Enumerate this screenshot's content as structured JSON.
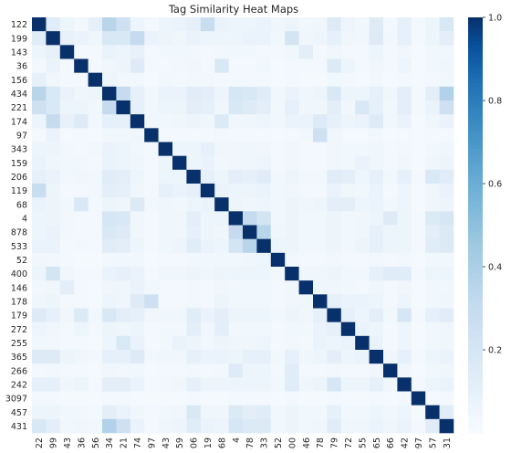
{
  "chart_data": {
    "type": "heatmap",
    "title": "Tag Similarity Heat Maps",
    "xlabel": "",
    "ylabel": "",
    "labels": [
      "122",
      "199",
      "143",
      "36",
      "156",
      "434",
      "221",
      "174",
      "97",
      "343",
      "159",
      "206",
      "119",
      "68",
      "4",
      "878",
      "533",
      "52",
      "400",
      "146",
      "178",
      "179",
      "272",
      "255",
      "365",
      "266",
      "242",
      "3097",
      "457",
      "431"
    ],
    "colorbar": {
      "min": 0,
      "max": 1,
      "ticks": [
        0.2,
        0.4,
        0.6,
        0.8,
        1.0
      ],
      "tick_labels": [
        "0.2",
        "0.4",
        "0.6",
        "0.8",
        "1.0"
      ]
    },
    "colors": {
      "low": "#f7fbff",
      "mid": "#6baed6",
      "high": "#08306b"
    },
    "grid": false,
    "legend": "colorbar-right",
    "matrix": [
      [
        1.0,
        0.14,
        0.06,
        0.03,
        0.1,
        0.35,
        0.25,
        0.06,
        0.03,
        0.06,
        0.08,
        0.1,
        0.28,
        0.08,
        0.06,
        0.06,
        0.08,
        0.05,
        0.06,
        0.04,
        0.05,
        0.15,
        0.06,
        0.04,
        0.15,
        0.03,
        0.1,
        0.03,
        0.06,
        0.18
      ],
      [
        0.14,
        1.0,
        0.09,
        0.08,
        0.05,
        0.18,
        0.18,
        0.3,
        0.08,
        0.06,
        0.05,
        0.08,
        0.06,
        0.06,
        0.06,
        0.08,
        0.08,
        0.04,
        0.22,
        0.05,
        0.06,
        0.1,
        0.05,
        0.04,
        0.15,
        0.04,
        0.1,
        0.03,
        0.06,
        0.12
      ],
      [
        0.06,
        0.09,
        1.0,
        0.03,
        0.03,
        0.08,
        0.06,
        0.09,
        0.03,
        0.04,
        0.04,
        0.04,
        0.03,
        0.04,
        0.04,
        0.04,
        0.03,
        0.03,
        0.05,
        0.12,
        0.03,
        0.05,
        0.03,
        0.03,
        0.06,
        0.03,
        0.05,
        0.02,
        0.04,
        0.04
      ],
      [
        0.03,
        0.08,
        0.03,
        1.0,
        0.03,
        0.05,
        0.06,
        0.15,
        0.03,
        0.03,
        0.04,
        0.05,
        0.03,
        0.18,
        0.03,
        0.03,
        0.04,
        0.02,
        0.03,
        0.03,
        0.03,
        0.16,
        0.06,
        0.03,
        0.05,
        0.03,
        0.06,
        0.02,
        0.04,
        0.05
      ],
      [
        0.1,
        0.05,
        0.03,
        0.03,
        1.0,
        0.06,
        0.04,
        0.04,
        0.02,
        0.04,
        0.03,
        0.04,
        0.04,
        0.03,
        0.03,
        0.03,
        0.03,
        0.02,
        0.03,
        0.02,
        0.02,
        0.04,
        0.03,
        0.02,
        0.04,
        0.02,
        0.03,
        0.02,
        0.03,
        0.04
      ],
      [
        0.35,
        0.18,
        0.08,
        0.05,
        0.06,
        1.0,
        0.3,
        0.1,
        0.04,
        0.08,
        0.08,
        0.14,
        0.12,
        0.06,
        0.2,
        0.18,
        0.14,
        0.04,
        0.08,
        0.05,
        0.06,
        0.18,
        0.06,
        0.06,
        0.1,
        0.05,
        0.12,
        0.03,
        0.12,
        0.38
      ],
      [
        0.25,
        0.18,
        0.06,
        0.06,
        0.04,
        0.3,
        1.0,
        0.1,
        0.04,
        0.06,
        0.06,
        0.12,
        0.1,
        0.05,
        0.18,
        0.15,
        0.12,
        0.04,
        0.1,
        0.05,
        0.05,
        0.12,
        0.05,
        0.18,
        0.1,
        0.04,
        0.12,
        0.03,
        0.08,
        0.25
      ],
      [
        0.06,
        0.3,
        0.09,
        0.15,
        0.04,
        0.1,
        0.1,
        1.0,
        0.05,
        0.04,
        0.05,
        0.06,
        0.05,
        0.16,
        0.05,
        0.05,
        0.06,
        0.04,
        0.08,
        0.08,
        0.15,
        0.1,
        0.06,
        0.08,
        0.15,
        0.04,
        0.08,
        0.02,
        0.05,
        0.08
      ],
      [
        0.03,
        0.08,
        0.03,
        0.03,
        0.02,
        0.04,
        0.04,
        0.05,
        1.0,
        0.03,
        0.03,
        0.03,
        0.03,
        0.04,
        0.03,
        0.03,
        0.03,
        0.02,
        0.03,
        0.04,
        0.25,
        0.05,
        0.03,
        0.03,
        0.04,
        0.02,
        0.03,
        0.02,
        0.03,
        0.03
      ],
      [
        0.06,
        0.06,
        0.04,
        0.03,
        0.04,
        0.08,
        0.06,
        0.04,
        0.03,
        1.0,
        0.06,
        0.06,
        0.1,
        0.05,
        0.05,
        0.05,
        0.05,
        0.03,
        0.05,
        0.03,
        0.03,
        0.05,
        0.04,
        0.04,
        0.05,
        0.03,
        0.04,
        0.02,
        0.04,
        0.05
      ],
      [
        0.08,
        0.05,
        0.04,
        0.04,
        0.03,
        0.08,
        0.06,
        0.05,
        0.03,
        0.06,
        1.0,
        0.06,
        0.08,
        0.04,
        0.05,
        0.05,
        0.06,
        0.03,
        0.05,
        0.03,
        0.03,
        0.05,
        0.04,
        0.08,
        0.05,
        0.03,
        0.05,
        0.02,
        0.05,
        0.06
      ],
      [
        0.1,
        0.08,
        0.04,
        0.05,
        0.04,
        0.14,
        0.12,
        0.06,
        0.03,
        0.06,
        0.06,
        1.0,
        0.1,
        0.06,
        0.12,
        0.1,
        0.14,
        0.04,
        0.06,
        0.04,
        0.04,
        0.14,
        0.12,
        0.06,
        0.1,
        0.04,
        0.1,
        0.03,
        0.18,
        0.14
      ],
      [
        0.28,
        0.06,
        0.03,
        0.03,
        0.04,
        0.12,
        0.1,
        0.05,
        0.03,
        0.1,
        0.08,
        0.1,
        1.0,
        0.08,
        0.06,
        0.06,
        0.08,
        0.04,
        0.05,
        0.03,
        0.03,
        0.08,
        0.05,
        0.04,
        0.08,
        0.03,
        0.06,
        0.02,
        0.05,
        0.08
      ],
      [
        0.08,
        0.06,
        0.04,
        0.18,
        0.03,
        0.06,
        0.05,
        0.16,
        0.04,
        0.05,
        0.04,
        0.06,
        0.08,
        1.0,
        0.06,
        0.05,
        0.06,
        0.04,
        0.06,
        0.05,
        0.06,
        0.12,
        0.12,
        0.06,
        0.08,
        0.04,
        0.06,
        0.02,
        0.05,
        0.06
      ],
      [
        0.06,
        0.06,
        0.04,
        0.03,
        0.03,
        0.2,
        0.18,
        0.05,
        0.03,
        0.05,
        0.05,
        0.12,
        0.06,
        0.06,
        1.0,
        0.3,
        0.22,
        0.04,
        0.06,
        0.04,
        0.04,
        0.06,
        0.04,
        0.05,
        0.06,
        0.15,
        0.06,
        0.03,
        0.16,
        0.2
      ],
      [
        0.06,
        0.08,
        0.04,
        0.03,
        0.03,
        0.18,
        0.15,
        0.05,
        0.03,
        0.05,
        0.05,
        0.1,
        0.06,
        0.05,
        0.3,
        1.0,
        0.35,
        0.05,
        0.06,
        0.04,
        0.04,
        0.06,
        0.04,
        0.05,
        0.1,
        0.06,
        0.06,
        0.03,
        0.12,
        0.16
      ],
      [
        0.08,
        0.08,
        0.03,
        0.04,
        0.03,
        0.14,
        0.12,
        0.06,
        0.03,
        0.05,
        0.06,
        0.14,
        0.08,
        0.06,
        0.22,
        0.35,
        1.0,
        0.06,
        0.06,
        0.04,
        0.04,
        0.06,
        0.04,
        0.06,
        0.1,
        0.06,
        0.06,
        0.03,
        0.14,
        0.16
      ],
      [
        0.05,
        0.04,
        0.03,
        0.02,
        0.02,
        0.04,
        0.04,
        0.04,
        0.02,
        0.03,
        0.03,
        0.04,
        0.04,
        0.04,
        0.04,
        0.05,
        0.06,
        1.0,
        0.04,
        0.03,
        0.03,
        0.04,
        0.03,
        0.03,
        0.04,
        0.03,
        0.04,
        0.02,
        0.04,
        0.04
      ],
      [
        0.06,
        0.22,
        0.05,
        0.03,
        0.03,
        0.08,
        0.1,
        0.08,
        0.03,
        0.05,
        0.05,
        0.06,
        0.05,
        0.06,
        0.06,
        0.06,
        0.06,
        0.04,
        1.0,
        0.05,
        0.05,
        0.06,
        0.04,
        0.04,
        0.1,
        0.14,
        0.14,
        0.03,
        0.06,
        0.06
      ],
      [
        0.04,
        0.05,
        0.12,
        0.03,
        0.02,
        0.05,
        0.05,
        0.08,
        0.04,
        0.03,
        0.03,
        0.04,
        0.03,
        0.05,
        0.04,
        0.04,
        0.04,
        0.03,
        0.05,
        1.0,
        0.05,
        0.05,
        0.04,
        0.03,
        0.05,
        0.03,
        0.05,
        0.02,
        0.04,
        0.04
      ],
      [
        0.05,
        0.06,
        0.03,
        0.03,
        0.02,
        0.06,
        0.05,
        0.15,
        0.25,
        0.03,
        0.03,
        0.04,
        0.03,
        0.06,
        0.04,
        0.04,
        0.04,
        0.03,
        0.05,
        0.05,
        1.0,
        0.1,
        0.08,
        0.08,
        0.06,
        0.03,
        0.06,
        0.02,
        0.04,
        0.05
      ],
      [
        0.15,
        0.1,
        0.05,
        0.16,
        0.04,
        0.18,
        0.12,
        0.1,
        0.05,
        0.05,
        0.05,
        0.14,
        0.08,
        0.12,
        0.06,
        0.06,
        0.06,
        0.04,
        0.06,
        0.05,
        0.1,
        1.0,
        0.1,
        0.06,
        0.12,
        0.04,
        0.2,
        0.03,
        0.1,
        0.14
      ],
      [
        0.06,
        0.05,
        0.03,
        0.06,
        0.03,
        0.06,
        0.05,
        0.06,
        0.03,
        0.04,
        0.04,
        0.12,
        0.05,
        0.12,
        0.04,
        0.04,
        0.04,
        0.03,
        0.04,
        0.04,
        0.08,
        0.1,
        1.0,
        0.08,
        0.06,
        0.03,
        0.06,
        0.02,
        0.04,
        0.05
      ],
      [
        0.04,
        0.04,
        0.03,
        0.03,
        0.02,
        0.06,
        0.18,
        0.08,
        0.03,
        0.04,
        0.08,
        0.06,
        0.04,
        0.06,
        0.05,
        0.05,
        0.06,
        0.03,
        0.04,
        0.03,
        0.08,
        0.06,
        0.08,
        1.0,
        0.08,
        0.03,
        0.06,
        0.02,
        0.04,
        0.05
      ],
      [
        0.15,
        0.15,
        0.06,
        0.05,
        0.04,
        0.1,
        0.1,
        0.15,
        0.04,
        0.05,
        0.05,
        0.1,
        0.08,
        0.08,
        0.06,
        0.1,
        0.1,
        0.04,
        0.1,
        0.05,
        0.06,
        0.12,
        0.06,
        0.08,
        1.0,
        0.05,
        0.1,
        0.03,
        0.06,
        0.08
      ],
      [
        0.03,
        0.04,
        0.03,
        0.03,
        0.02,
        0.05,
        0.04,
        0.04,
        0.02,
        0.03,
        0.03,
        0.04,
        0.03,
        0.04,
        0.15,
        0.06,
        0.06,
        0.03,
        0.14,
        0.03,
        0.03,
        0.04,
        0.03,
        0.03,
        0.05,
        1.0,
        0.05,
        0.02,
        0.04,
        0.05
      ],
      [
        0.1,
        0.1,
        0.05,
        0.06,
        0.03,
        0.12,
        0.12,
        0.08,
        0.03,
        0.04,
        0.05,
        0.1,
        0.06,
        0.06,
        0.06,
        0.06,
        0.06,
        0.04,
        0.14,
        0.05,
        0.06,
        0.2,
        0.06,
        0.06,
        0.1,
        0.05,
        1.0,
        0.03,
        0.06,
        0.08
      ],
      [
        0.03,
        0.03,
        0.02,
        0.02,
        0.02,
        0.03,
        0.03,
        0.02,
        0.02,
        0.02,
        0.02,
        0.03,
        0.02,
        0.02,
        0.03,
        0.03,
        0.03,
        0.02,
        0.03,
        0.02,
        0.02,
        0.03,
        0.02,
        0.02,
        0.03,
        0.02,
        0.03,
        1.0,
        0.02,
        0.03
      ],
      [
        0.06,
        0.06,
        0.04,
        0.04,
        0.03,
        0.12,
        0.08,
        0.05,
        0.03,
        0.04,
        0.05,
        0.18,
        0.05,
        0.05,
        0.16,
        0.12,
        0.14,
        0.04,
        0.06,
        0.04,
        0.04,
        0.1,
        0.04,
        0.04,
        0.06,
        0.04,
        0.06,
        0.02,
        1.0,
        0.14
      ],
      [
        0.18,
        0.12,
        0.04,
        0.05,
        0.04,
        0.38,
        0.25,
        0.08,
        0.03,
        0.05,
        0.06,
        0.14,
        0.08,
        0.06,
        0.2,
        0.16,
        0.16,
        0.04,
        0.06,
        0.04,
        0.05,
        0.14,
        0.05,
        0.05,
        0.08,
        0.05,
        0.08,
        0.03,
        0.14,
        1.0
      ]
    ]
  }
}
